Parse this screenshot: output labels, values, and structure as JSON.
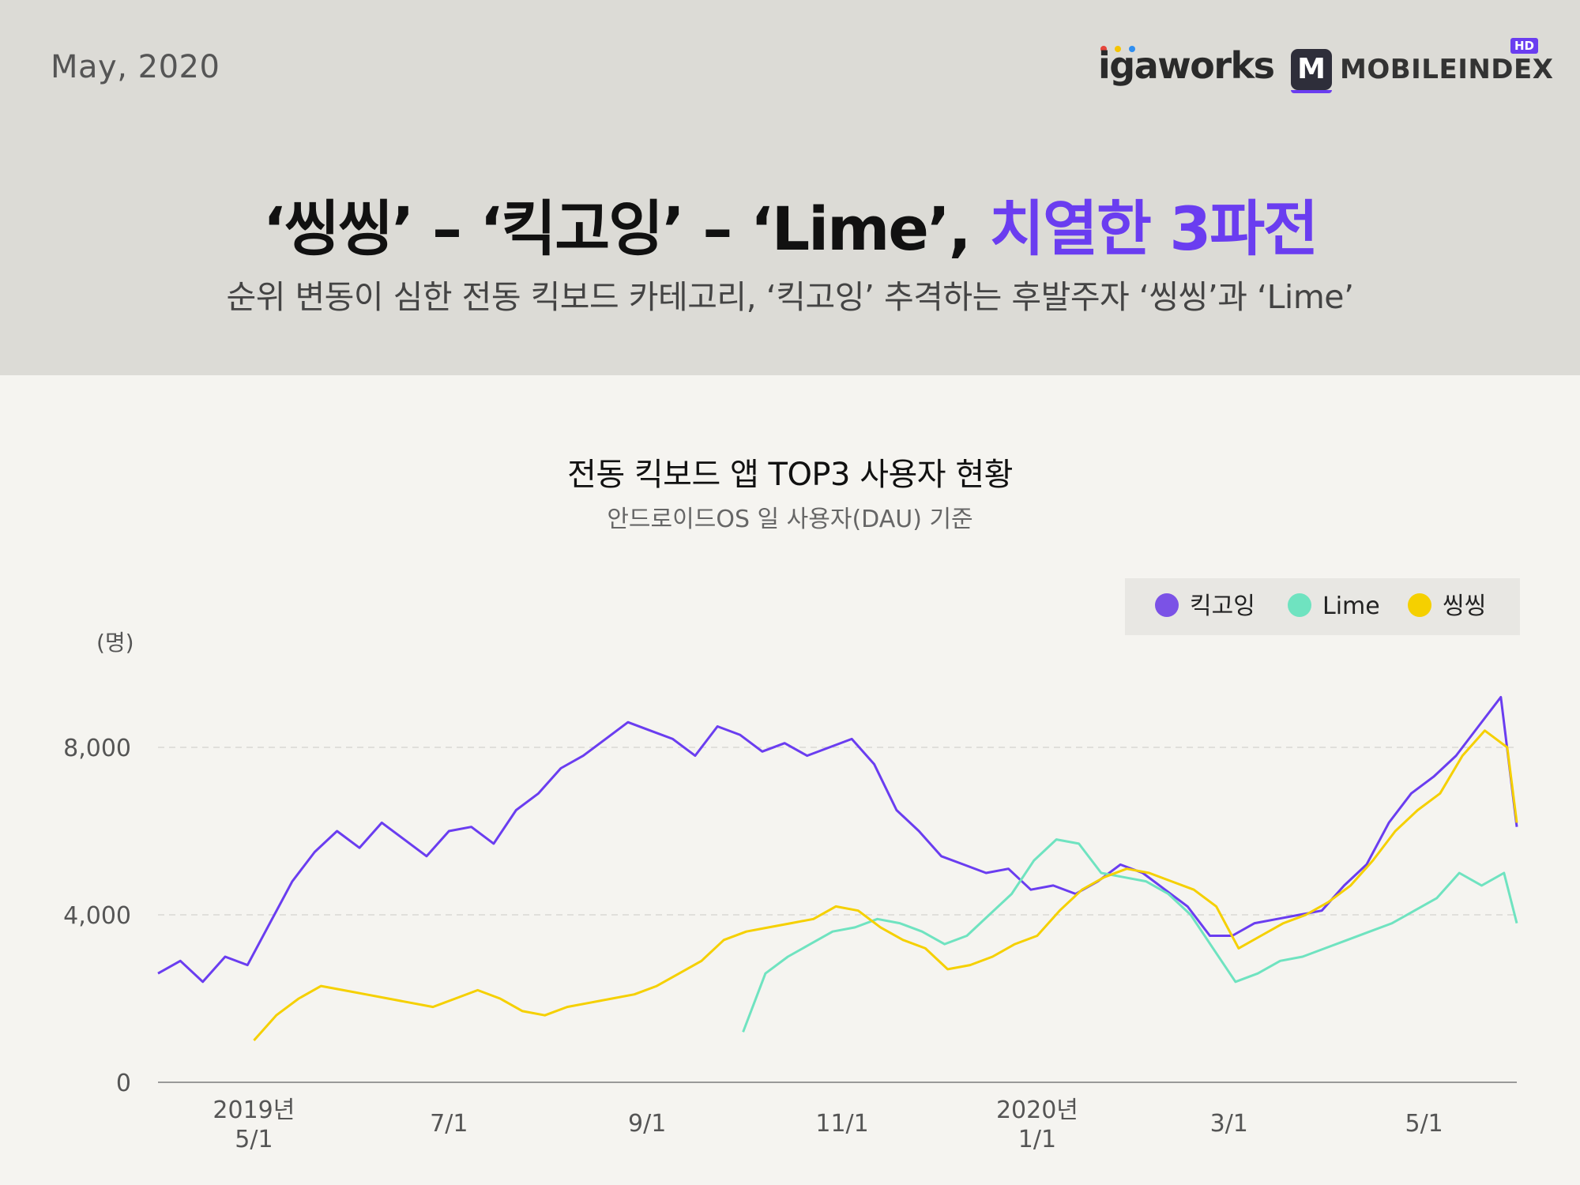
{
  "header": {
    "date": "May, 2020",
    "logo_igaworks": "igaworks",
    "logo_mobileindex": "MOBILEINDEX",
    "logo_m": "M",
    "logo_hd": "HD",
    "title_main": "‘씽씽’ – ‘킥고잉’ – ‘Lime’,",
    "title_accent": "치열한 3파전",
    "subtitle": "순위 변동이 심한 전동 킥보드 카테고리, ‘킥고잉’ 추격하는 후발주자 ‘씽씽’과 ‘Lime’"
  },
  "colors": {
    "kickgoing": "#6a3df0",
    "lime": "#6fe3c0",
    "ssingssing": "#f5d000",
    "accent": "#6a3df0"
  },
  "chart_data": {
    "type": "line",
    "title": "전동 킥보드 앱 TOP3 사용자 현황",
    "subtitle": "안드로이드OS 일 사용자(DAU) 기준",
    "ylabel": "(명)",
    "ylim": [
      0,
      10000
    ],
    "yticks": [
      {
        "value": 0,
        "label": "0"
      },
      {
        "value": 4000,
        "label": "4,000"
      },
      {
        "value": 8000,
        "label": "8,000"
      }
    ],
    "xlim": [
      "2019-04-01",
      "2020-05-30"
    ],
    "xticks": [
      {
        "date": "2019-05-01",
        "line1": "2019년",
        "line2": "5/1"
      },
      {
        "date": "2019-07-01",
        "line1": "",
        "line2": "7/1"
      },
      {
        "date": "2019-09-01",
        "line1": "",
        "line2": "9/1"
      },
      {
        "date": "2019-11-01",
        "line1": "",
        "line2": "11/1"
      },
      {
        "date": "2020-01-01",
        "line1": "2020년",
        "line2": "1/1"
      },
      {
        "date": "2020-03-01",
        "line1": "",
        "line2": "3/1"
      },
      {
        "date": "2020-05-01",
        "line1": "",
        "line2": "5/1"
      }
    ],
    "legend_position": "top-right",
    "series": [
      {
        "name": "킥고잉",
        "color": "#6a3df0",
        "x": [
          "2019-04-01",
          "2019-04-08",
          "2019-04-15",
          "2019-04-22",
          "2019-04-29",
          "2019-05-06",
          "2019-05-13",
          "2019-05-20",
          "2019-05-27",
          "2019-06-03",
          "2019-06-10",
          "2019-06-17",
          "2019-06-24",
          "2019-07-01",
          "2019-07-08",
          "2019-07-15",
          "2019-07-22",
          "2019-07-29",
          "2019-08-05",
          "2019-08-12",
          "2019-08-19",
          "2019-08-26",
          "2019-09-02",
          "2019-09-09",
          "2019-09-16",
          "2019-09-23",
          "2019-09-30",
          "2019-10-07",
          "2019-10-14",
          "2019-10-21",
          "2019-10-28",
          "2019-11-04",
          "2019-11-11",
          "2019-11-18",
          "2019-11-25",
          "2019-12-02",
          "2019-12-09",
          "2019-12-16",
          "2019-12-23",
          "2019-12-30",
          "2020-01-06",
          "2020-01-13",
          "2020-01-20",
          "2020-01-27",
          "2020-02-03",
          "2020-02-10",
          "2020-02-17",
          "2020-02-24",
          "2020-03-02",
          "2020-03-09",
          "2020-03-16",
          "2020-03-23",
          "2020-03-30",
          "2020-04-06",
          "2020-04-13",
          "2020-04-20",
          "2020-04-27",
          "2020-05-04",
          "2020-05-11",
          "2020-05-18",
          "2020-05-25",
          "2020-05-30"
        ],
        "y": [
          2600,
          2900,
          2400,
          3000,
          2800,
          3800,
          4800,
          5500,
          6000,
          5600,
          6200,
          5800,
          5400,
          6000,
          6100,
          5700,
          6500,
          6900,
          7500,
          7800,
          8200,
          8600,
          8400,
          8200,
          7800,
          8500,
          8300,
          7900,
          8100,
          7800,
          8000,
          8200,
          7600,
          6500,
          6000,
          5400,
          5200,
          5000,
          5100,
          4600,
          4700,
          4500,
          4800,
          5200,
          5000,
          4600,
          4200,
          3500,
          3500,
          3800,
          3900,
          4000,
          4100,
          4700,
          5200,
          6200,
          6900,
          7300,
          7800,
          8500,
          9200,
          6100
        ]
      },
      {
        "name": "Lime",
        "color": "#6fe3c0",
        "x": [
          "2019-10-01",
          "2019-10-08",
          "2019-10-15",
          "2019-10-22",
          "2019-10-29",
          "2019-11-05",
          "2019-11-12",
          "2019-11-19",
          "2019-11-26",
          "2019-12-03",
          "2019-12-10",
          "2019-12-17",
          "2019-12-24",
          "2019-12-31",
          "2020-01-07",
          "2020-01-14",
          "2020-01-21",
          "2020-01-28",
          "2020-02-04",
          "2020-02-11",
          "2020-02-18",
          "2020-02-25",
          "2020-03-03",
          "2020-03-10",
          "2020-03-17",
          "2020-03-24",
          "2020-03-31",
          "2020-04-07",
          "2020-04-14",
          "2020-04-21",
          "2020-04-28",
          "2020-05-05",
          "2020-05-12",
          "2020-05-19",
          "2020-05-26",
          "2020-05-30"
        ],
        "y": [
          1200,
          2600,
          3000,
          3300,
          3600,
          3700,
          3900,
          3800,
          3600,
          3300,
          3500,
          4000,
          4500,
          5300,
          5800,
          5700,
          5000,
          4900,
          4800,
          4500,
          4000,
          3200,
          2400,
          2600,
          2900,
          3000,
          3200,
          3400,
          3600,
          3800,
          4100,
          4400,
          5000,
          4700,
          5000,
          3800
        ]
      },
      {
        "name": "씽씽",
        "color": "#f5d000",
        "x": [
          "2019-05-01",
          "2019-05-08",
          "2019-05-15",
          "2019-05-22",
          "2019-05-29",
          "2019-06-05",
          "2019-06-12",
          "2019-06-19",
          "2019-06-26",
          "2019-07-03",
          "2019-07-10",
          "2019-07-17",
          "2019-07-24",
          "2019-07-31",
          "2019-08-07",
          "2019-08-14",
          "2019-08-21",
          "2019-08-28",
          "2019-09-04",
          "2019-09-11",
          "2019-09-18",
          "2019-09-25",
          "2019-10-02",
          "2019-10-09",
          "2019-10-16",
          "2019-10-23",
          "2019-10-30",
          "2019-11-06",
          "2019-11-13",
          "2019-11-20",
          "2019-11-27",
          "2019-12-04",
          "2019-12-11",
          "2019-12-18",
          "2019-12-25",
          "2020-01-01",
          "2020-01-08",
          "2020-01-15",
          "2020-01-22",
          "2020-01-29",
          "2020-02-05",
          "2020-02-12",
          "2020-02-19",
          "2020-02-26",
          "2020-03-04",
          "2020-03-11",
          "2020-03-18",
          "2020-03-25",
          "2020-04-01",
          "2020-04-08",
          "2020-04-15",
          "2020-04-22",
          "2020-04-29",
          "2020-05-06",
          "2020-05-13",
          "2020-05-20",
          "2020-05-27",
          "2020-05-30"
        ],
        "y": [
          1000,
          1600,
          2000,
          2300,
          2200,
          2100,
          2000,
          1900,
          1800,
          2000,
          2200,
          2000,
          1700,
          1600,
          1800,
          1900,
          2000,
          2100,
          2300,
          2600,
          2900,
          3400,
          3600,
          3700,
          3800,
          3900,
          4200,
          4100,
          3700,
          3400,
          3200,
          2700,
          2800,
          3000,
          3300,
          3500,
          4100,
          4600,
          4900,
          5100,
          5000,
          4800,
          4600,
          4200,
          3200,
          3500,
          3800,
          4000,
          4300,
          4700,
          5300,
          6000,
          6500,
          6900,
          7800,
          8400,
          8000,
          6200
        ]
      }
    ]
  }
}
